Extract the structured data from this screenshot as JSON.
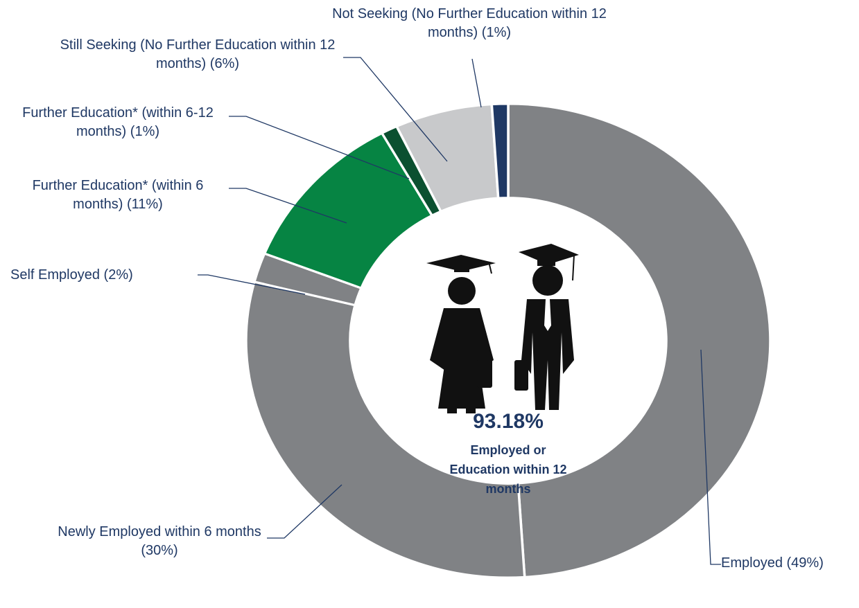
{
  "chart_data": {
    "type": "pie",
    "categories": [
      "Employed",
      "Newly Employed within 6 months",
      "Self Employed",
      "Further Education* (within 6 months)",
      "Further Education* (within 6-12 months)",
      "Still Seeking (No Further Education within 12 months)",
      "Not Seeking (No Further Education within 12 months)"
    ],
    "values": [
      49,
      30,
      2,
      11,
      1,
      6,
      1
    ],
    "value_labels": [
      "(49%)",
      "(30%)",
      "(2%)",
      "(11%)",
      "(1%)",
      "(6%)",
      "(1%)"
    ],
    "colors": [
      "#808285",
      "#808285",
      "#808285",
      "#068443",
      "#0b5030",
      "#c8c9cb",
      "#1f3864"
    ],
    "center_value": "93.18%",
    "center_caption": "Employed or Education within 12 months"
  }
}
